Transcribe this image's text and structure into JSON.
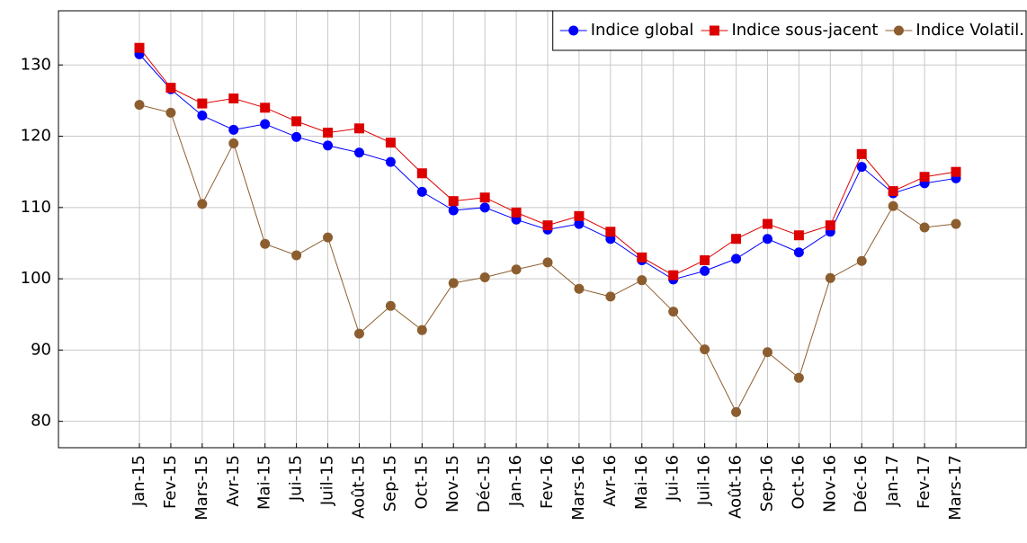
{
  "chart_data": {
    "type": "line",
    "categories": [
      "Jan-15",
      "Fev-15",
      "Mars-15",
      "Avr-15",
      "Mai-15",
      "Jui-15",
      "Juil-15",
      "Août-15",
      "Sep-15",
      "Oct-15",
      "Nov-15",
      "Déc-15",
      "Jan-16",
      "Fev-16",
      "Mars-16",
      "Avr-16",
      "Mai-16",
      "Jui-16",
      "Juil-16",
      "Août-16",
      "Sep-16",
      "Oct-16",
      "Nov-16",
      "Déc-16",
      "Jan-17",
      "Fev-17",
      "Mars-17"
    ],
    "series": [
      {
        "name": "Indice global",
        "color": "#0000ff",
        "marker": "circle",
        "values": [
          131.5,
          126.6,
          122.9,
          120.9,
          121.7,
          119.9,
          118.7,
          117.7,
          116.4,
          112.2,
          109.6,
          110.0,
          108.3,
          106.9,
          107.7,
          105.6,
          102.6,
          99.9,
          101.1,
          102.8,
          105.6,
          103.7,
          106.6,
          115.7,
          112.0,
          113.4,
          114.1
        ]
      },
      {
        "name": "Indice sous-jacent",
        "color": "#dd0000",
        "marker": "square",
        "values": [
          132.4,
          126.8,
          124.6,
          125.3,
          124.0,
          122.1,
          120.5,
          121.1,
          119.1,
          114.8,
          110.9,
          111.4,
          109.3,
          107.5,
          108.8,
          106.6,
          103.0,
          100.5,
          102.6,
          105.6,
          107.7,
          106.1,
          107.5,
          117.5,
          112.3,
          114.3,
          115.0
        ]
      },
      {
        "name": "Indice Volatil.",
        "color": "#8c5e2f",
        "marker": "circle",
        "values": [
          124.4,
          123.3,
          110.5,
          119.0,
          104.9,
          103.3,
          105.8,
          92.3,
          96.2,
          92.8,
          99.4,
          100.2,
          101.3,
          102.3,
          98.6,
          97.5,
          99.8,
          95.4,
          90.1,
          81.3,
          89.7,
          86.1,
          100.1,
          102.5,
          110.2,
          107.2,
          107.7
        ]
      }
    ],
    "ylim": [
      76.3,
      137.6
    ],
    "yticks": [
      80,
      90,
      100,
      110,
      120,
      130
    ],
    "grid": true,
    "legend": "top-right"
  }
}
